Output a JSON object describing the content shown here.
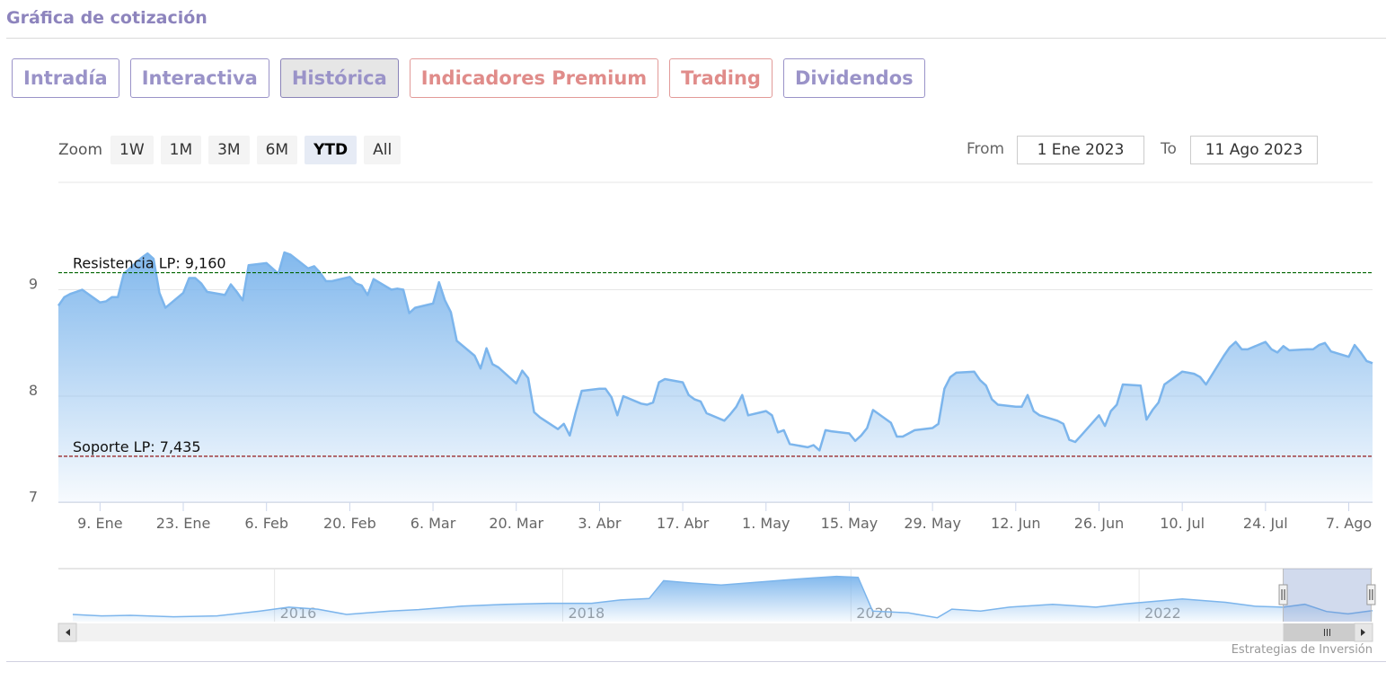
{
  "header": {
    "title": "Gráfica de cotización"
  },
  "tabs": [
    {
      "label": "Intradía",
      "style": "normal"
    },
    {
      "label": "Interactiva",
      "style": "normal"
    },
    {
      "label": "Histórica",
      "style": "active"
    },
    {
      "label": "Indicadores Premium",
      "style": "premium"
    },
    {
      "label": "Trading",
      "style": "premium"
    },
    {
      "label": "Dividendos",
      "style": "normal"
    }
  ],
  "zoom": {
    "label": "Zoom",
    "buttons": [
      "1W",
      "1M",
      "3M",
      "6M",
      "YTD",
      "All"
    ],
    "selected": "YTD"
  },
  "range": {
    "from_label": "From",
    "from_value": "1 Ene 2023",
    "to_label": "To",
    "to_value": "11 Ago 2023"
  },
  "credits": "Estrategias de Inversión",
  "colors": {
    "accent": "#8d84bd",
    "premium": "#e08c8a",
    "series": "#7cb5ec",
    "resistance": "#006400",
    "support": "#8b0000"
  },
  "chart_data": {
    "type": "area",
    "ylim": [
      7,
      9.35
    ],
    "y_ticks": [
      7,
      8,
      9
    ],
    "x_ticks": [
      {
        "date": "2023-01-09",
        "label": "9. Ene"
      },
      {
        "date": "2023-01-23",
        "label": "23. Ene"
      },
      {
        "date": "2023-02-06",
        "label": "6. Feb"
      },
      {
        "date": "2023-02-20",
        "label": "20. Feb"
      },
      {
        "date": "2023-03-06",
        "label": "6. Mar"
      },
      {
        "date": "2023-03-20",
        "label": "20. Mar"
      },
      {
        "date": "2023-04-03",
        "label": "3. Abr"
      },
      {
        "date": "2023-04-17",
        "label": "17. Abr"
      },
      {
        "date": "2023-05-01",
        "label": "1. May"
      },
      {
        "date": "2023-05-15",
        "label": "15. May"
      },
      {
        "date": "2023-05-29",
        "label": "29. May"
      },
      {
        "date": "2023-06-12",
        "label": "12. Jun"
      },
      {
        "date": "2023-06-26",
        "label": "26. Jun"
      },
      {
        "date": "2023-07-10",
        "label": "10. Jul"
      },
      {
        "date": "2023-07-24",
        "label": "24. Jul"
      },
      {
        "date": "2023-08-07",
        "label": "7. Ago"
      }
    ],
    "x_range": [
      "2023-01-02",
      "2023-08-11"
    ],
    "series": [
      {
        "points": [
          [
            "2023-01-02",
            8.85
          ],
          [
            "2023-01-03",
            8.93
          ],
          [
            "2023-01-04",
            8.96
          ],
          [
            "2023-01-05",
            8.98
          ],
          [
            "2023-01-06",
            9.0
          ],
          [
            "2023-01-09",
            8.88
          ],
          [
            "2023-01-10",
            8.89
          ],
          [
            "2023-01-11",
            8.93
          ],
          [
            "2023-01-12",
            8.93
          ],
          [
            "2023-01-13",
            9.15
          ],
          [
            "2023-01-16",
            9.3
          ],
          [
            "2023-01-17",
            9.34
          ],
          [
            "2023-01-18",
            9.29
          ],
          [
            "2023-01-19",
            8.97
          ],
          [
            "2023-01-20",
            8.83
          ],
          [
            "2023-01-23",
            8.97
          ],
          [
            "2023-01-24",
            9.11
          ],
          [
            "2023-01-25",
            9.11
          ],
          [
            "2023-01-26",
            9.06
          ],
          [
            "2023-01-27",
            8.98
          ],
          [
            "2023-01-30",
            8.95
          ],
          [
            "2023-01-31",
            9.05
          ],
          [
            "2023-02-01",
            8.98
          ],
          [
            "2023-02-02",
            8.9
          ],
          [
            "2023-02-03",
            9.23
          ],
          [
            "2023-02-06",
            9.25
          ],
          [
            "2023-02-07",
            9.2
          ],
          [
            "2023-02-08",
            9.15
          ],
          [
            "2023-02-09",
            9.35
          ],
          [
            "2023-02-10",
            9.33
          ],
          [
            "2023-02-13",
            9.2
          ],
          [
            "2023-02-14",
            9.22
          ],
          [
            "2023-02-15",
            9.16
          ],
          [
            "2023-02-16",
            9.08
          ],
          [
            "2023-02-17",
            9.08
          ],
          [
            "2023-02-20",
            9.12
          ],
          [
            "2023-02-21",
            9.06
          ],
          [
            "2023-02-22",
            9.04
          ],
          [
            "2023-02-23",
            8.95
          ],
          [
            "2023-02-24",
            9.1
          ],
          [
            "2023-02-27",
            9.0
          ],
          [
            "2023-02-28",
            9.01
          ],
          [
            "2023-03-01",
            9.0
          ],
          [
            "2023-03-02",
            8.78
          ],
          [
            "2023-03-03",
            8.83
          ],
          [
            "2023-03-06",
            8.87
          ],
          [
            "2023-03-07",
            9.07
          ],
          [
            "2023-03-08",
            8.9
          ],
          [
            "2023-03-09",
            8.79
          ],
          [
            "2023-03-10",
            8.52
          ],
          [
            "2023-03-13",
            8.38
          ],
          [
            "2023-03-14",
            8.26
          ],
          [
            "2023-03-15",
            8.45
          ],
          [
            "2023-03-16",
            8.3
          ],
          [
            "2023-03-17",
            8.27
          ],
          [
            "2023-03-20",
            8.12
          ],
          [
            "2023-03-21",
            8.24
          ],
          [
            "2023-03-22",
            8.17
          ],
          [
            "2023-03-23",
            7.85
          ],
          [
            "2023-03-24",
            7.8
          ],
          [
            "2023-03-27",
            7.69
          ],
          [
            "2023-03-28",
            7.74
          ],
          [
            "2023-03-29",
            7.63
          ],
          [
            "2023-03-30",
            7.85
          ],
          [
            "2023-03-31",
            8.05
          ],
          [
            "2023-04-03",
            8.07
          ],
          [
            "2023-04-04",
            8.07
          ],
          [
            "2023-04-05",
            7.99
          ],
          [
            "2023-04-06",
            7.82
          ],
          [
            "2023-04-07",
            8.0
          ],
          [
            "2023-04-10",
            7.93
          ],
          [
            "2023-04-11",
            7.92
          ],
          [
            "2023-04-12",
            7.94
          ],
          [
            "2023-04-13",
            8.13
          ],
          [
            "2023-04-14",
            8.16
          ],
          [
            "2023-04-17",
            8.13
          ],
          [
            "2023-04-18",
            8.01
          ],
          [
            "2023-04-19",
            7.97
          ],
          [
            "2023-04-20",
            7.95
          ],
          [
            "2023-04-21",
            7.84
          ],
          [
            "2023-04-24",
            7.77
          ],
          [
            "2023-04-25",
            7.83
          ],
          [
            "2023-04-26",
            7.9
          ],
          [
            "2023-04-27",
            8.01
          ],
          [
            "2023-04-28",
            7.82
          ],
          [
            "2023-05-01",
            7.86
          ],
          [
            "2023-05-02",
            7.82
          ],
          [
            "2023-05-03",
            7.66
          ],
          [
            "2023-05-04",
            7.68
          ],
          [
            "2023-05-05",
            7.55
          ],
          [
            "2023-05-08",
            7.52
          ],
          [
            "2023-05-09",
            7.54
          ],
          [
            "2023-05-10",
            7.49
          ],
          [
            "2023-05-11",
            7.68
          ],
          [
            "2023-05-12",
            7.67
          ],
          [
            "2023-05-15",
            7.65
          ],
          [
            "2023-05-16",
            7.58
          ],
          [
            "2023-05-17",
            7.63
          ],
          [
            "2023-05-18",
            7.7
          ],
          [
            "2023-05-19",
            7.87
          ],
          [
            "2023-05-22",
            7.75
          ],
          [
            "2023-05-23",
            7.62
          ],
          [
            "2023-05-24",
            7.62
          ],
          [
            "2023-05-25",
            7.65
          ],
          [
            "2023-05-26",
            7.68
          ],
          [
            "2023-05-29",
            7.7
          ],
          [
            "2023-05-30",
            7.74
          ],
          [
            "2023-05-31",
            8.07
          ],
          [
            "2023-06-01",
            8.18
          ],
          [
            "2023-06-02",
            8.22
          ],
          [
            "2023-06-05",
            8.23
          ],
          [
            "2023-06-06",
            8.15
          ],
          [
            "2023-06-07",
            8.1
          ],
          [
            "2023-06-08",
            7.97
          ],
          [
            "2023-06-09",
            7.92
          ],
          [
            "2023-06-12",
            7.9
          ],
          [
            "2023-06-13",
            7.9
          ],
          [
            "2023-06-14",
            8.01
          ],
          [
            "2023-06-15",
            7.86
          ],
          [
            "2023-06-16",
            7.82
          ],
          [
            "2023-06-19",
            7.77
          ],
          [
            "2023-06-20",
            7.74
          ],
          [
            "2023-06-21",
            7.59
          ],
          [
            "2023-06-22",
            7.57
          ],
          [
            "2023-06-23",
            7.63
          ],
          [
            "2023-06-26",
            7.82
          ],
          [
            "2023-06-27",
            7.72
          ],
          [
            "2023-06-28",
            7.86
          ],
          [
            "2023-06-29",
            7.92
          ],
          [
            "2023-06-30",
            8.11
          ],
          [
            "2023-07-03",
            8.1
          ],
          [
            "2023-07-04",
            7.78
          ],
          [
            "2023-07-05",
            7.87
          ],
          [
            "2023-07-06",
            7.94
          ],
          [
            "2023-07-07",
            8.11
          ],
          [
            "2023-07-10",
            8.23
          ],
          [
            "2023-07-11",
            8.22
          ],
          [
            "2023-07-12",
            8.21
          ],
          [
            "2023-07-13",
            8.18
          ],
          [
            "2023-07-14",
            8.11
          ],
          [
            "2023-07-17",
            8.38
          ],
          [
            "2023-07-18",
            8.46
          ],
          [
            "2023-07-19",
            8.51
          ],
          [
            "2023-07-20",
            8.44
          ],
          [
            "2023-07-21",
            8.44
          ],
          [
            "2023-07-24",
            8.51
          ],
          [
            "2023-07-25",
            8.44
          ],
          [
            "2023-07-26",
            8.41
          ],
          [
            "2023-07-27",
            8.47
          ],
          [
            "2023-07-28",
            8.43
          ],
          [
            "2023-07-31",
            8.44
          ],
          [
            "2023-08-01",
            8.44
          ],
          [
            "2023-08-02",
            8.48
          ],
          [
            "2023-08-03",
            8.5
          ],
          [
            "2023-08-04",
            8.42
          ],
          [
            "2023-08-07",
            8.37
          ],
          [
            "2023-08-08",
            8.48
          ],
          [
            "2023-08-09",
            8.41
          ],
          [
            "2023-08-10",
            8.33
          ],
          [
            "2023-08-11",
            8.31
          ]
        ]
      }
    ],
    "plot_lines": [
      {
        "label": "Resistencia LP: 9,160",
        "value": 9.16,
        "color": "#006400"
      },
      {
        "label": "Soporte LP: 7,435",
        "value": 7.435,
        "color": "#8b0000"
      }
    ],
    "navigator": {
      "x_range": [
        2014.5,
        2023.62
      ],
      "x_ticks": [
        {
          "value": 2016,
          "label": "2016"
        },
        {
          "value": 2018,
          "label": "2018"
        },
        {
          "value": 2020,
          "label": "2020"
        },
        {
          "value": 2022,
          "label": "2022"
        }
      ],
      "selected_range": [
        2023.0,
        2023.61
      ],
      "y_range": [
        3,
        14
      ],
      "values": [
        [
          2014.6,
          4.5
        ],
        [
          2014.8,
          4.2
        ],
        [
          2015.0,
          4.3
        ],
        [
          2015.3,
          4.0
        ],
        [
          2015.6,
          4.2
        ],
        [
          2015.9,
          5.2
        ],
        [
          2016.1,
          6.0
        ],
        [
          2016.3,
          5.6
        ],
        [
          2016.5,
          4.5
        ],
        [
          2016.8,
          5.2
        ],
        [
          2017.0,
          5.5
        ],
        [
          2017.3,
          6.2
        ],
        [
          2017.6,
          6.6
        ],
        [
          2017.9,
          6.8
        ],
        [
          2018.2,
          6.8
        ],
        [
          2018.4,
          7.5
        ],
        [
          2018.6,
          7.8
        ],
        [
          2018.7,
          11.5
        ],
        [
          2018.9,
          11.0
        ],
        [
          2019.1,
          10.6
        ],
        [
          2019.4,
          11.3
        ],
        [
          2019.7,
          12.0
        ],
        [
          2019.9,
          12.4
        ],
        [
          2020.05,
          12.2
        ],
        [
          2020.15,
          5.2
        ],
        [
          2020.4,
          4.8
        ],
        [
          2020.6,
          3.8
        ],
        [
          2020.7,
          5.6
        ],
        [
          2020.9,
          5.2
        ],
        [
          2021.1,
          6.0
        ],
        [
          2021.4,
          6.6
        ],
        [
          2021.7,
          6.0
        ],
        [
          2021.9,
          6.7
        ],
        [
          2022.1,
          7.2
        ],
        [
          2022.3,
          7.7
        ],
        [
          2022.6,
          7.0
        ],
        [
          2022.8,
          6.2
        ],
        [
          2023.0,
          6.0
        ],
        [
          2023.15,
          6.6
        ],
        [
          2023.3,
          5.1
        ],
        [
          2023.45,
          4.6
        ],
        [
          2023.62,
          5.3
        ]
      ]
    }
  }
}
